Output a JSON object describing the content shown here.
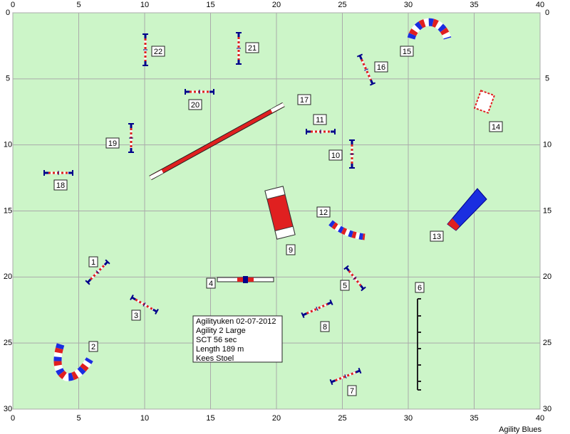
{
  "axes": {
    "xticks": [
      0,
      5,
      10,
      15,
      20,
      25,
      30,
      35,
      40
    ],
    "yticks": [
      0,
      5,
      10,
      15,
      20,
      25,
      30
    ]
  },
  "obstacles": {
    "labels": [
      "1",
      "2",
      "3",
      "4",
      "5",
      "6",
      "7",
      "8",
      "9",
      "10",
      "11",
      "12",
      "13",
      "14",
      "15",
      "16",
      "17",
      "18",
      "19",
      "20",
      "21",
      "22"
    ]
  },
  "info": {
    "lines": [
      "Agilityuken 02-07-2012",
      "Agility 2 Large",
      "SCT 56 sec",
      "Length 189 m",
      "Kees Stoel"
    ]
  },
  "footer": "Agility Blues"
}
